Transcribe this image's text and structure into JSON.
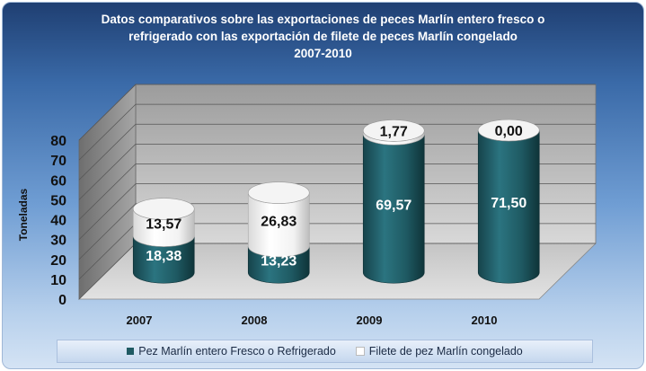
{
  "chart_data": {
    "type": "bar",
    "stacked": true,
    "style": "3d-cylinder",
    "title": "Datos comparativos  sobre las exportaciones de peces Marlín entero fresco o\nrefrigerado con las exportación de filete de peces Marlín congelado\n2007-2010",
    "ylabel": "Toneladas",
    "xlabel": "",
    "ylim": [
      0,
      80
    ],
    "yticks": [
      "0",
      "10",
      "20",
      "30",
      "40",
      "50",
      "60",
      "70",
      "80"
    ],
    "categories": [
      "2007",
      "2008",
      "2009",
      "2010"
    ],
    "series": [
      {
        "name": "Pez Marlín entero Fresco o Refrigerado",
        "values": [
          18.38,
          13.23,
          69.57,
          71.5
        ],
        "labels": [
          "18,38",
          "13,23",
          "69,57",
          "71,50"
        ],
        "color": "#1f5a63"
      },
      {
        "name": "Filete de pez Marlín congelado",
        "values": [
          13.57,
          26.83,
          1.77,
          0.0
        ],
        "labels": [
          "13,57",
          "26,83",
          "1,77",
          "0,00"
        ],
        "color": "#ffffff"
      }
    ],
    "legend_position": "bottom",
    "grid": true
  }
}
